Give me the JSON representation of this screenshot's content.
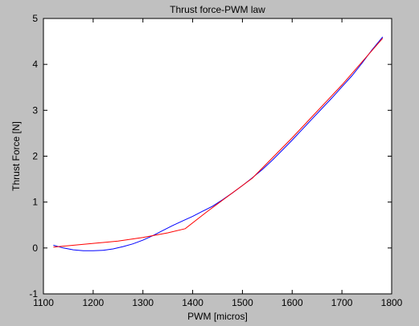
{
  "window": {
    "background": "#c0c0c0"
  },
  "chart_data": {
    "type": "line",
    "title": "Thrust force-PWM law",
    "xlabel": "PWM [micros]",
    "ylabel": "Thrust Force [N]",
    "xlim": [
      1100,
      1800
    ],
    "ylim": [
      -1,
      5
    ],
    "xticks": [
      1100,
      1200,
      1300,
      1400,
      1500,
      1600,
      1700,
      1800
    ],
    "yticks": [
      -1,
      0,
      1,
      2,
      3,
      4,
      5
    ],
    "grid": false,
    "legend": "none",
    "series": [
      {
        "color": "#0000ff",
        "x": [
          1120,
          1140,
          1160,
          1180,
          1200,
          1220,
          1240,
          1260,
          1280,
          1300,
          1320,
          1340,
          1360,
          1380,
          1400,
          1420,
          1440,
          1460,
          1480,
          1500,
          1520,
          1540,
          1560,
          1580,
          1600,
          1620,
          1640,
          1660,
          1680,
          1700,
          1720,
          1740,
          1760,
          1782
        ],
        "y": [
          0.06,
          0.0,
          -0.04,
          -0.06,
          -0.06,
          -0.05,
          -0.02,
          0.03,
          0.09,
          0.17,
          0.27,
          0.38,
          0.49,
          0.59,
          0.69,
          0.8,
          0.91,
          1.05,
          1.2,
          1.36,
          1.53,
          1.71,
          1.91,
          2.13,
          2.35,
          2.58,
          2.81,
          3.04,
          3.27,
          3.51,
          3.75,
          4.02,
          4.31,
          4.6
        ]
      },
      {
        "color": "#ff0000",
        "x": [
          1120,
          1200,
          1250,
          1300,
          1350,
          1385,
          1430,
          1520,
          1600,
          1700,
          1782
        ],
        "y": [
          0.02,
          0.1,
          0.15,
          0.23,
          0.33,
          0.42,
          0.8,
          1.52,
          2.4,
          3.55,
          4.57
        ]
      }
    ]
  }
}
